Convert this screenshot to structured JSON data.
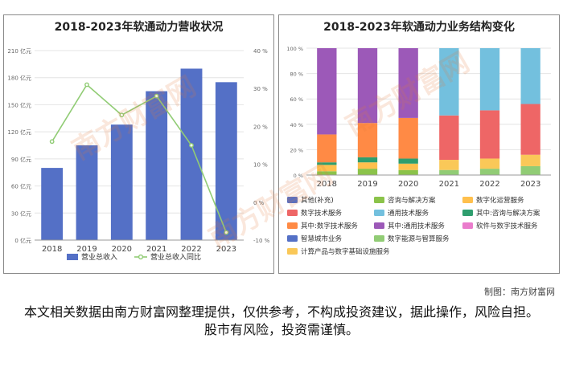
{
  "credit": "制图：南方财富网",
  "disclaimer": "本文相关数据由南方财富网整理提供，仅供参考，不构成投资建议，据此操作，风险自担。股市有风险，投资需谨慎。",
  "watermark": "南方财富网",
  "chart_data": [
    {
      "type": "bar",
      "title": "2018-2023年软通动力营收状况",
      "categories": [
        "2018",
        "2019",
        "2020",
        "2021",
        "2022",
        "2023"
      ],
      "series": [
        {
          "name": "营业总收入",
          "values": [
            80,
            105,
            128,
            165,
            190,
            175
          ],
          "axis": "left",
          "color": "#5470c6",
          "kind": "bar"
        },
        {
          "name": "营业总收入同比",
          "values": [
            16,
            31,
            23,
            28,
            15,
            -8
          ],
          "axis": "right",
          "color": "#91cc75",
          "kind": "line"
        }
      ],
      "y_left": {
        "min": 0,
        "max": 210,
        "step": 30,
        "unit": "亿元"
      },
      "y_right": {
        "min": -10,
        "max": 40,
        "step": 10,
        "unit": "%"
      },
      "legend_position": "bottom",
      "grid": "horizontal"
    },
    {
      "type": "bar",
      "stacked": true,
      "normalized": true,
      "title": "2018-2023年软通动力业务结构变化",
      "categories": [
        "2018",
        "2019",
        "2020",
        "2021",
        "2022",
        "2023"
      ],
      "y": {
        "min": 0,
        "max": 100,
        "step": 20,
        "unit": "%"
      },
      "legend_position": "bottom",
      "series": [
        {
          "name": "智慧城市业务",
          "color": "#5470c6",
          "values": [
            0,
            0,
            0,
            0,
            0,
            0
          ]
        },
        {
          "name": "数字能源与智算服务",
          "color": "#91cc75",
          "values": [
            0,
            0,
            0,
            4,
            5,
            7
          ]
        },
        {
          "name": "计算产品与数字基础设施服务",
          "color": "#fac858",
          "values": [
            0,
            0,
            0,
            8,
            8,
            9
          ]
        },
        {
          "name": "咨询与解决方案",
          "color": "#8bc34a",
          "values": [
            3,
            5,
            4,
            0,
            0,
            0
          ]
        },
        {
          "name": "数字化运营服务",
          "color": "#ffc04d",
          "values": [
            5,
            5,
            5,
            0,
            0,
            0
          ]
        },
        {
          "name": "其中:咨询与解决方案",
          "color": "#2e9e6e",
          "values": [
            2,
            4,
            4,
            0,
            0,
            0
          ]
        },
        {
          "name": "其中:数字技术服务",
          "color": "#ff8a45",
          "values": [
            22,
            27,
            32,
            0,
            0,
            0
          ]
        },
        {
          "name": "数字技术服务",
          "color": "#ee6666",
          "values": [
            0,
            0,
            0,
            35,
            38,
            40
          ]
        },
        {
          "name": "其中:通用技术服务",
          "color": "#9c59b8",
          "values": [
            68,
            59,
            55,
            0,
            0,
            0
          ]
        },
        {
          "name": "通用技术服务",
          "color": "#73c0de",
          "values": [
            0,
            0,
            0,
            53,
            49,
            44
          ]
        },
        {
          "name": "软件与数字技术服务",
          "color": "#ea7ccc",
          "values": [
            0,
            0,
            0,
            0,
            0,
            0
          ]
        },
        {
          "name": "其他(补充)",
          "color": "#5470c6",
          "values": [
            0,
            0,
            0,
            0,
            0,
            0
          ]
        }
      ],
      "legend_order": [
        "其他(补充)",
        "咨询与解决方案",
        "数字化运营服务",
        "数字技术服务",
        "通用技术服务",
        "其中:咨询与解决方案",
        "其中:数字技术服务",
        "其中:通用技术服务",
        "软件与数字技术服务",
        "智慧城市业务",
        "数字能源与智算服务",
        "计算产品与数字基础设施服务"
      ]
    }
  ]
}
